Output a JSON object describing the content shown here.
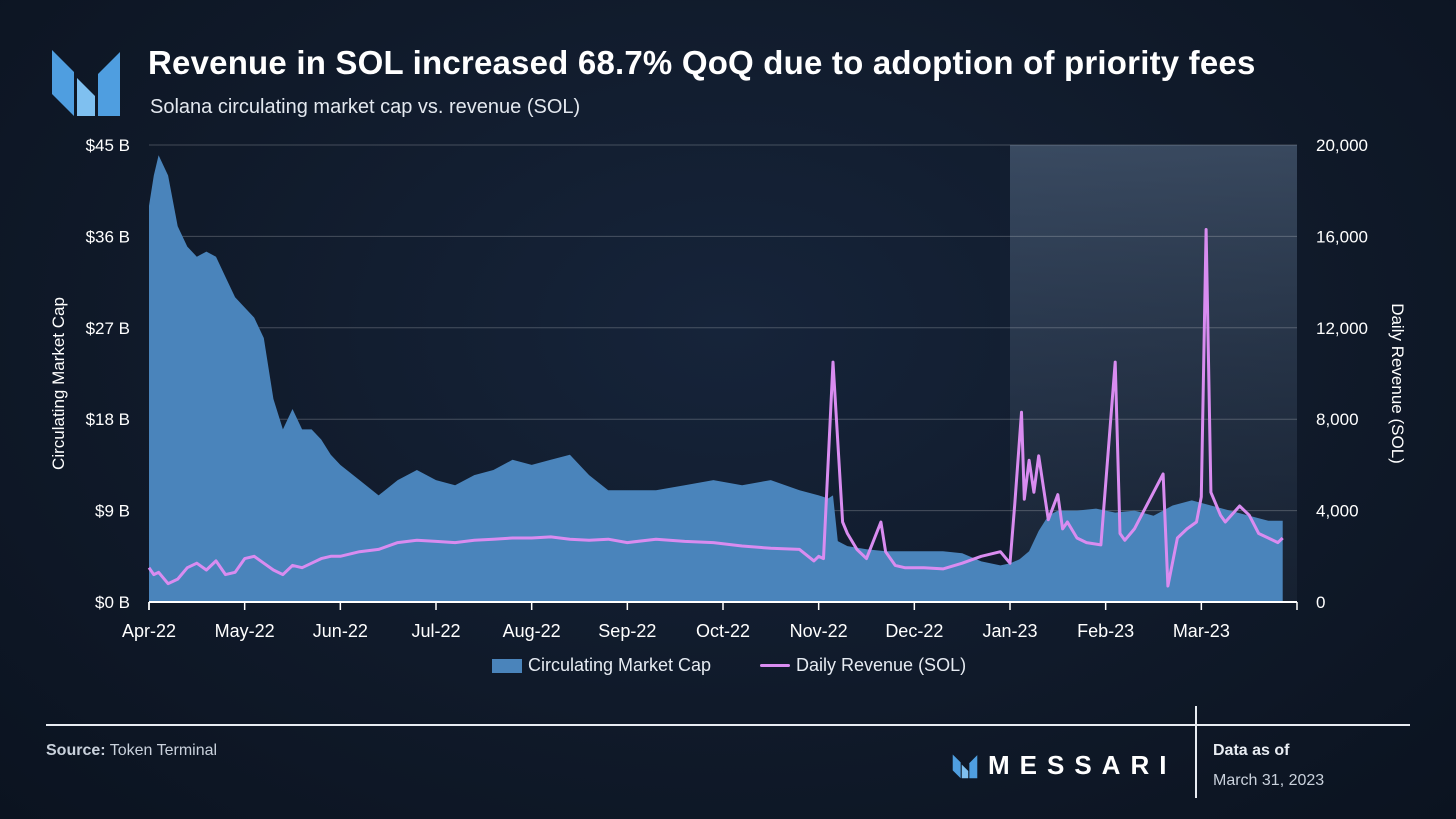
{
  "header": {
    "title": "Revenue in SOL increased 68.7% QoQ due to adoption of priority fees",
    "subtitle": "Solana circulating market cap vs. revenue (SOL)"
  },
  "footer": {
    "source_label": "Source:",
    "source_value": "Token Terminal",
    "brand": "MESSARI",
    "data_as_of_label": "Data as of",
    "data_as_of_value": "March 31, 2023"
  },
  "colors": {
    "market_cap_fill": "#4a84bb",
    "revenue_line": "#d98cf0",
    "highlight": "#3a4a60"
  },
  "chart_data": {
    "type": "area+line",
    "x_range": [
      "Apr-22",
      "Mar-23"
    ],
    "x_tick_labels": [
      "Apr-22",
      "May-22",
      "Jun-22",
      "Jul-22",
      "Aug-22",
      "Sep-22",
      "Oct-22",
      "Nov-22",
      "Dec-22",
      "Jan-23",
      "Feb-23",
      "Mar-23"
    ],
    "y_left": {
      "label": "Circulating Market Cap",
      "range": [
        0,
        45
      ],
      "ticks": [
        0,
        9,
        18,
        27,
        36,
        45
      ],
      "tick_labels": [
        "$0 B",
        "$9 B",
        "$18 B",
        "$27 B",
        "$36 B",
        "$45 B"
      ]
    },
    "y_right": {
      "label": "Daily Revenue (SOL)",
      "range": [
        0,
        20000
      ],
      "ticks": [
        0,
        4000,
        8000,
        12000,
        16000,
        20000
      ],
      "tick_labels": [
        "0",
        "4,000",
        "8,000",
        "12,000",
        "16,000",
        "20,000"
      ]
    },
    "grid": "horizontal",
    "highlight_range": [
      9,
      12
    ],
    "series": [
      {
        "name": "Circulating Market Cap",
        "type": "area",
        "axis": "left",
        "x": [
          0,
          0.05,
          0.1,
          0.2,
          0.3,
          0.4,
          0.5,
          0.6,
          0.7,
          0.8,
          0.9,
          1.0,
          1.1,
          1.2,
          1.3,
          1.4,
          1.5,
          1.6,
          1.7,
          1.8,
          1.9,
          2.0,
          2.2,
          2.4,
          2.6,
          2.8,
          3.0,
          3.2,
          3.4,
          3.6,
          3.8,
          4.0,
          4.2,
          4.4,
          4.6,
          4.8,
          5.0,
          5.3,
          5.6,
          5.9,
          6.2,
          6.5,
          6.8,
          7.0,
          7.1,
          7.15,
          7.2,
          7.3,
          7.5,
          7.7,
          7.9,
          8.1,
          8.3,
          8.5,
          8.7,
          8.9,
          9.0,
          9.1,
          9.2,
          9.3,
          9.4,
          9.5,
          9.7,
          9.9,
          10.1,
          10.3,
          10.5,
          10.7,
          10.9,
          11.1,
          11.3,
          11.5,
          11.7,
          11.85
        ],
        "values": [
          39,
          42,
          44,
          42,
          37,
          35,
          34,
          34.5,
          34,
          32,
          30,
          29,
          28,
          26,
          20,
          17,
          19,
          17,
          17,
          16,
          14.5,
          13.5,
          12,
          10.5,
          12,
          13,
          12,
          11.5,
          12.5,
          13,
          14,
          13.5,
          14,
          14.5,
          12.5,
          11,
          11,
          11,
          11.5,
          12,
          11.5,
          12,
          11,
          10.5,
          10.2,
          10.5,
          6,
          5.5,
          5.2,
          5,
          5,
          5,
          5,
          4.8,
          4,
          3.6,
          3.8,
          4.2,
          5,
          7,
          8.5,
          9,
          9,
          9.2,
          8.8,
          9,
          8.5,
          9.5,
          10,
          9.5,
          9,
          8.5,
          8,
          8
        ]
      },
      {
        "name": "Daily Revenue (SOL)",
        "type": "line",
        "axis": "right",
        "x": [
          0,
          0.05,
          0.1,
          0.2,
          0.3,
          0.4,
          0.5,
          0.6,
          0.7,
          0.8,
          0.9,
          1.0,
          1.1,
          1.2,
          1.3,
          1.4,
          1.5,
          1.6,
          1.7,
          1.8,
          1.9,
          2.0,
          2.2,
          2.4,
          2.6,
          2.8,
          3.0,
          3.2,
          3.4,
          3.6,
          3.8,
          4.0,
          4.2,
          4.4,
          4.6,
          4.8,
          5.0,
          5.3,
          5.6,
          5.9,
          6.2,
          6.5,
          6.8,
          6.95,
          7.0,
          7.05,
          7.15,
          7.25,
          7.3,
          7.4,
          7.5,
          7.65,
          7.7,
          7.8,
          7.9,
          8.1,
          8.3,
          8.5,
          8.7,
          8.9,
          9.0,
          9.05,
          9.12,
          9.15,
          9.2,
          9.25,
          9.3,
          9.35,
          9.4,
          9.5,
          9.55,
          9.6,
          9.7,
          9.8,
          9.95,
          10.1,
          10.15,
          10.2,
          10.3,
          10.5,
          10.6,
          10.65,
          10.75,
          10.85,
          10.95,
          11.0,
          11.05,
          11.1,
          11.2,
          11.25,
          11.4,
          11.5,
          11.6,
          11.7,
          11.8,
          11.85
        ],
        "values": [
          1500,
          1200,
          1300,
          800,
          1000,
          1500,
          1700,
          1400,
          1800,
          1200,
          1300,
          1900,
          2000,
          1700,
          1400,
          1200,
          1600,
          1500,
          1700,
          1900,
          2000,
          2000,
          2200,
          2300,
          2600,
          2700,
          2650,
          2600,
          2700,
          2750,
          2800,
          2800,
          2850,
          2750,
          2700,
          2750,
          2600,
          2750,
          2650,
          2600,
          2450,
          2350,
          2300,
          1800,
          2000,
          1900,
          10500,
          3500,
          3000,
          2300,
          1900,
          3500,
          2200,
          1600,
          1500,
          1500,
          1450,
          1700,
          2000,
          2200,
          1700,
          4300,
          8300,
          4500,
          6200,
          4800,
          6400,
          5000,
          3600,
          4700,
          3200,
          3500,
          2800,
          2600,
          2500,
          10500,
          3000,
          2700,
          3200,
          4800,
          5600,
          700,
          2800,
          3200,
          3500,
          4600,
          16300,
          4800,
          3800,
          3500,
          4200,
          3800,
          3000,
          2800,
          2600,
          2800
        ]
      }
    ],
    "legend": "bottom-center"
  }
}
